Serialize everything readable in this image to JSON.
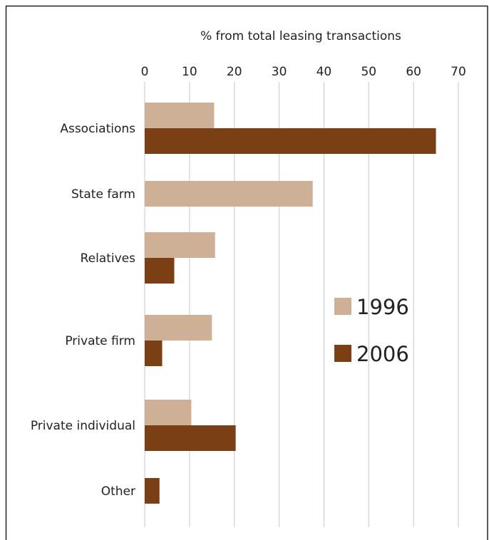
{
  "chart_data": {
    "type": "bar",
    "orientation": "horizontal",
    "title": "% from total leasing transactions",
    "xlabel": "% from total leasing transactions",
    "ylabel": "",
    "xlim": [
      0,
      70
    ],
    "ticks": [
      0,
      10,
      20,
      30,
      40,
      50,
      60,
      70
    ],
    "grid": true,
    "legend_position": "right",
    "categories": [
      "Associations",
      "State farm",
      "Relatives",
      "Private firm",
      "Private individual",
      "Other"
    ],
    "series": [
      {
        "name": "1996",
        "color": "#cdb096",
        "values": [
          15.5,
          37.5,
          15.7,
          15.0,
          10.4,
          0
        ]
      },
      {
        "name": "2006",
        "color": "#7b3f16",
        "values": [
          65.0,
          0,
          6.6,
          3.9,
          20.3,
          3.3
        ]
      }
    ]
  }
}
